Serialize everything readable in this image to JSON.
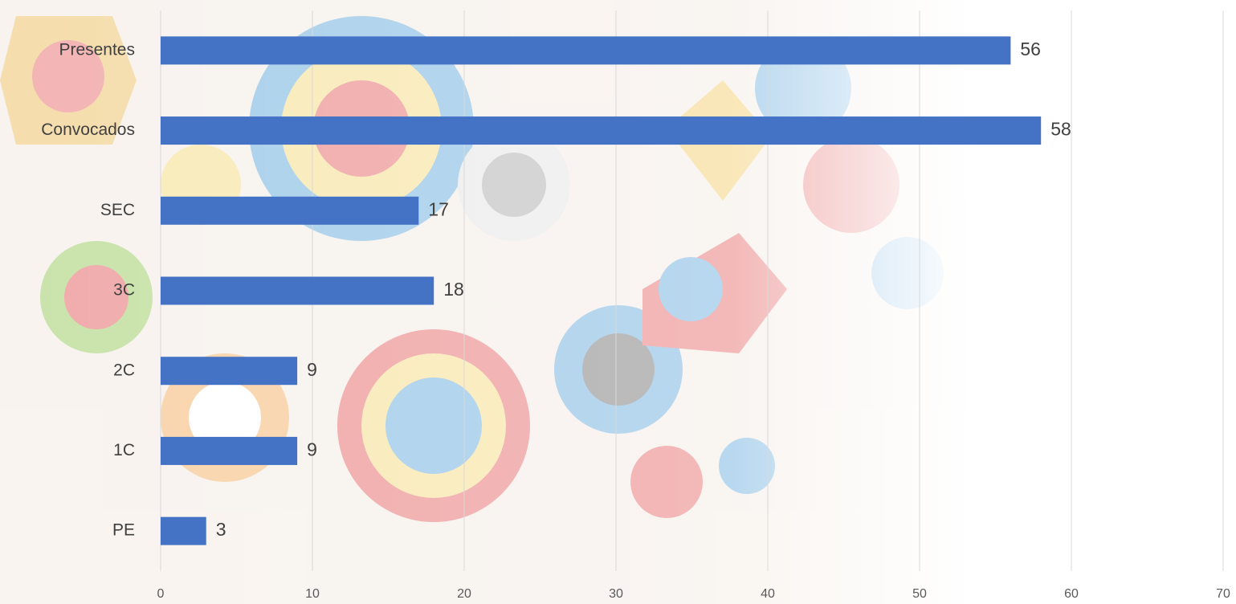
{
  "chart_data": {
    "type": "bar",
    "orientation": "horizontal",
    "categories": [
      "Presentes",
      "Convocados",
      "SEC",
      "3C",
      "2C",
      "1C",
      "PE"
    ],
    "values": [
      56,
      58,
      17,
      18,
      9,
      9,
      3
    ],
    "color": "#4472c4",
    "xlim": [
      0,
      70
    ],
    "xticks": [
      0,
      10,
      20,
      30,
      40,
      50,
      60,
      70
    ],
    "grid": true
  }
}
